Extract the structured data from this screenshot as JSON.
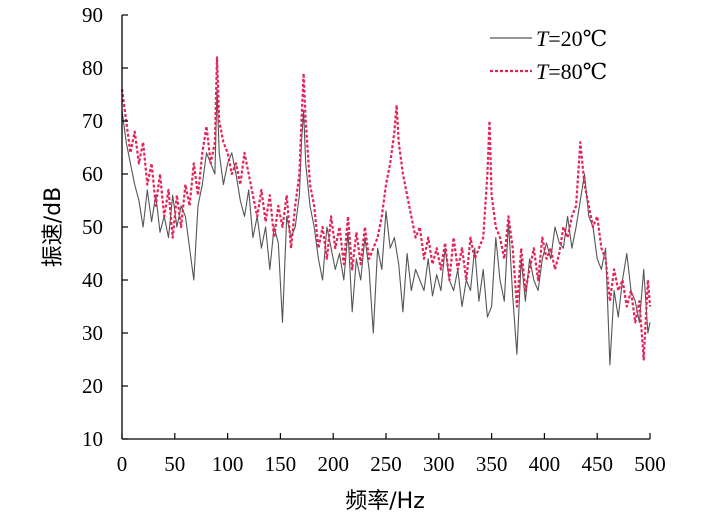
{
  "chart_data": {
    "type": "line",
    "xlabel": "频率/Hz",
    "ylabel": "振速/dB",
    "xlim": [
      0,
      500
    ],
    "ylim": [
      10,
      90
    ],
    "xticks": [
      0,
      50,
      100,
      150,
      200,
      250,
      300,
      350,
      400,
      450,
      500
    ],
    "yticks": [
      10,
      20,
      30,
      40,
      50,
      60,
      70,
      80,
      90
    ],
    "grid": false,
    "legend_position": "top-right",
    "legend": [
      {
        "var": "T",
        "text": "=20℃"
      },
      {
        "var": "T",
        "text": "=80℃"
      }
    ],
    "series": [
      {
        "color": "#555555",
        "style": "solid",
        "x": [
          0,
          4,
          8,
          12,
          16,
          20,
          24,
          28,
          32,
          36,
          40,
          44,
          48,
          52,
          56,
          60,
          64,
          68,
          72,
          76,
          80,
          84,
          88,
          90,
          92,
          96,
          100,
          104,
          108,
          112,
          116,
          120,
          124,
          128,
          132,
          136,
          140,
          144,
          148,
          152,
          156,
          160,
          164,
          168,
          170,
          172,
          174,
          178,
          182,
          186,
          190,
          194,
          198,
          202,
          206,
          210,
          214,
          218,
          222,
          226,
          230,
          234,
          238,
          242,
          246,
          250,
          254,
          258,
          262,
          266,
          270,
          274,
          278,
          282,
          286,
          290,
          294,
          298,
          302,
          306,
          310,
          314,
          318,
          322,
          326,
          330,
          334,
          338,
          342,
          346,
          350,
          354,
          358,
          362,
          366,
          370,
          374,
          378,
          382,
          386,
          390,
          394,
          398,
          402,
          406,
          410,
          414,
          418,
          422,
          426,
          430,
          434,
          438,
          442,
          446,
          450,
          454,
          458,
          462,
          466,
          470,
          474,
          478,
          482,
          486,
          490,
          494,
          498,
          500
        ],
        "values": [
          72,
          66,
          62,
          58,
          55,
          50,
          57,
          51,
          56,
          49,
          52,
          48,
          56,
          50,
          54,
          52,
          46,
          40,
          54,
          58,
          64,
          62,
          60,
          76,
          64,
          58,
          62,
          64,
          60,
          55,
          52,
          57,
          48,
          52,
          46,
          50,
          42,
          50,
          47,
          32,
          52,
          48,
          50,
          56,
          66,
          72,
          62,
          54,
          50,
          44,
          40,
          50,
          46,
          42,
          45,
          40,
          49,
          34,
          44,
          40,
          48,
          42,
          30,
          46,
          42,
          53,
          46,
          48,
          43,
          34,
          45,
          38,
          42,
          40,
          38,
          44,
          37,
          41,
          38,
          46,
          40,
          38,
          42,
          35,
          40,
          38,
          46,
          36,
          42,
          33,
          35,
          48,
          40,
          36,
          51,
          37,
          26,
          44,
          36,
          44,
          40,
          38,
          44,
          47,
          44,
          50,
          47,
          46,
          52,
          46,
          50,
          55,
          60,
          52,
          50,
          44,
          42,
          46,
          24,
          38,
          33,
          40,
          45,
          38,
          36,
          32,
          42,
          30,
          32
        ]
      },
      {
        "color": "#e3245a",
        "style": "dashed",
        "x": [
          0,
          4,
          8,
          12,
          16,
          20,
          24,
          28,
          32,
          36,
          40,
          44,
          48,
          52,
          56,
          60,
          64,
          68,
          72,
          76,
          80,
          84,
          88,
          90,
          92,
          96,
          100,
          104,
          108,
          112,
          116,
          120,
          124,
          128,
          132,
          136,
          140,
          144,
          148,
          152,
          156,
          160,
          164,
          168,
          170,
          172,
          174,
          178,
          182,
          186,
          190,
          194,
          198,
          202,
          206,
          210,
          214,
          218,
          222,
          226,
          230,
          234,
          238,
          242,
          246,
          250,
          254,
          258,
          260,
          262,
          266,
          270,
          274,
          278,
          282,
          286,
          290,
          294,
          298,
          302,
          306,
          310,
          314,
          318,
          322,
          326,
          330,
          334,
          338,
          342,
          346,
          348,
          350,
          354,
          358,
          362,
          366,
          370,
          374,
          378,
          382,
          386,
          390,
          394,
          398,
          402,
          406,
          410,
          414,
          418,
          422,
          426,
          430,
          432,
          434,
          438,
          442,
          446,
          450,
          454,
          458,
          462,
          466,
          470,
          474,
          478,
          482,
          486,
          490,
          494,
          498,
          500
        ],
        "values": [
          76,
          70,
          64,
          68,
          62,
          66,
          58,
          62,
          54,
          60,
          52,
          57,
          48,
          56,
          50,
          58,
          54,
          62,
          56,
          64,
          69,
          62,
          66,
          82,
          70,
          66,
          64,
          60,
          62,
          58,
          64,
          60,
          56,
          52,
          57,
          51,
          56,
          48,
          54,
          50,
          56,
          46,
          54,
          60,
          70,
          79,
          70,
          58,
          54,
          46,
          50,
          44,
          52,
          46,
          50,
          43,
          52,
          42,
          49,
          43,
          50,
          44,
          46,
          48,
          52,
          58,
          62,
          68,
          73,
          66,
          60,
          56,
          52,
          48,
          50,
          44,
          48,
          43,
          46,
          42,
          47,
          40,
          48,
          42,
          46,
          40,
          48,
          44,
          46,
          48,
          60,
          70,
          56,
          50,
          48,
          44,
          52,
          46,
          35,
          46,
          38,
          42,
          46,
          40,
          48,
          44,
          46,
          42,
          45,
          50,
          48,
          52,
          54,
          60,
          66,
          58,
          54,
          50,
          52,
          46,
          44,
          36,
          42,
          38,
          40,
          35,
          38,
          32,
          36,
          25,
          40,
          35
        ]
      }
    ]
  }
}
